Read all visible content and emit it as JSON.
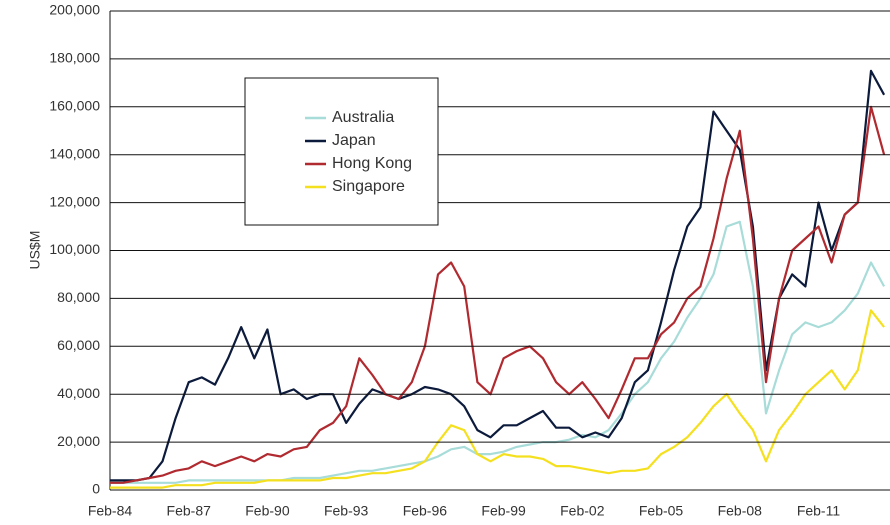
{
  "chart_data": {
    "type": "line",
    "y_label": "US$M",
    "categories": [
      "Feb-84",
      null,
      null,
      null,
      null,
      null,
      "Feb-87",
      null,
      null,
      null,
      null,
      null,
      "Feb-90",
      null,
      null,
      null,
      null,
      null,
      "Feb-93",
      null,
      null,
      null,
      null,
      null,
      "Feb-96",
      null,
      null,
      null,
      null,
      null,
      "Feb-99",
      null,
      null,
      null,
      null,
      null,
      "Feb-02",
      null,
      null,
      null,
      null,
      null,
      "Feb-05",
      null,
      null,
      null,
      null,
      null,
      "Feb-08",
      null,
      null,
      null,
      null,
      null,
      "Feb-11",
      null,
      null,
      null,
      null,
      null
    ],
    "series": [
      {
        "name": "Australia",
        "color": "#a8dcd9",
        "values": [
          3000,
          3000,
          3000,
          3000,
          3000,
          3000,
          4000,
          4000,
          4000,
          4000,
          4000,
          4000,
          4000,
          4000,
          5000,
          5000,
          5000,
          6000,
          7000,
          8000,
          8000,
          9000,
          10000,
          11000,
          12000,
          14000,
          17000,
          18000,
          15000,
          15000,
          16000,
          18000,
          19000,
          20000,
          20000,
          21000,
          23000,
          22000,
          25000,
          32000,
          40000,
          45000,
          55000,
          62000,
          72000,
          80000,
          90000,
          110000,
          112000,
          85000,
          32000,
          50000,
          65000,
          70000,
          68000,
          70000,
          75000,
          82000,
          95000,
          85000
        ]
      },
      {
        "name": "Japan",
        "color": "#0c1a3c",
        "values": [
          4000,
          4000,
          4000,
          5000,
          12000,
          30000,
          45000,
          47000,
          44000,
          55000,
          68000,
          55000,
          67000,
          40000,
          42000,
          38000,
          40000,
          40000,
          28000,
          36000,
          42000,
          40000,
          38000,
          40000,
          43000,
          42000,
          40000,
          35000,
          25000,
          22000,
          27000,
          27000,
          30000,
          33000,
          26000,
          26000,
          22000,
          24000,
          22000,
          30000,
          45000,
          50000,
          70000,
          92000,
          110000,
          118000,
          158000,
          150000,
          142000,
          110000,
          50000,
          80000,
          90000,
          85000,
          120000,
          100000,
          115000,
          120000,
          175000,
          165000
        ]
      },
      {
        "name": "Hong Kong",
        "color": "#b02a30",
        "values": [
          3000,
          3000,
          4000,
          5000,
          6000,
          8000,
          9000,
          12000,
          10000,
          12000,
          14000,
          12000,
          15000,
          14000,
          17000,
          18000,
          25000,
          28000,
          35000,
          55000,
          48000,
          40000,
          38000,
          45000,
          60000,
          90000,
          95000,
          85000,
          45000,
          40000,
          55000,
          58000,
          60000,
          55000,
          45000,
          40000,
          45000,
          38000,
          30000,
          42000,
          55000,
          55000,
          65000,
          70000,
          80000,
          85000,
          105000,
          130000,
          150000,
          105000,
          45000,
          80000,
          100000,
          105000,
          110000,
          95000,
          115000,
          120000,
          160000,
          140000
        ]
      },
      {
        "name": "Singapore",
        "color": "#f5e020",
        "values": [
          1000,
          1000,
          1000,
          1000,
          1000,
          2000,
          2000,
          2000,
          3000,
          3000,
          3000,
          3000,
          4000,
          4000,
          4000,
          4000,
          4000,
          5000,
          5000,
          6000,
          7000,
          7000,
          8000,
          9000,
          12000,
          20000,
          27000,
          25000,
          15000,
          12000,
          15000,
          14000,
          14000,
          13000,
          10000,
          10000,
          9000,
          8000,
          7000,
          8000,
          8000,
          9000,
          15000,
          18000,
          22000,
          28000,
          35000,
          40000,
          32000,
          25000,
          12000,
          25000,
          32000,
          40000,
          45000,
          50000,
          42000,
          50000,
          75000,
          68000
        ]
      }
    ],
    "ylim": [
      0,
      200000
    ],
    "yticks": [
      0,
      {
        "value": 20000,
        "label": "20,000"
      },
      {
        "value": 40000,
        "label": "40,000"
      },
      {
        "value": 60000,
        "label": "60,000"
      },
      {
        "value": 80000,
        "label": "80,000"
      },
      {
        "value": 100000,
        "label": "100,000"
      },
      {
        "value": 120000,
        "label": "120,000"
      },
      {
        "value": 140000,
        "label": "140,000"
      },
      {
        "value": 160000,
        "label": "160,000"
      },
      {
        "value": 180000,
        "label": "180,000"
      },
      {
        "value": 200000,
        "label": "200,000"
      }
    ],
    "grid": true
  }
}
